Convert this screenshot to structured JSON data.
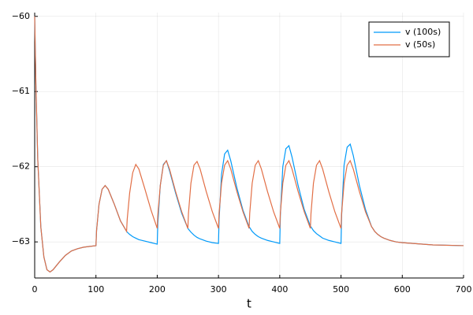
{
  "chart_data": {
    "type": "line",
    "xlabel": "t",
    "x": [
      0,
      2,
      5,
      10,
      15,
      20,
      25,
      30,
      40,
      50,
      60,
      70,
      80,
      90,
      100,
      101,
      105,
      110,
      115,
      120,
      130,
      140,
      150,
      151,
      155,
      160,
      165,
      170,
      180,
      190,
      200,
      201,
      205,
      210,
      215,
      220,
      230,
      240,
      250,
      251,
      255,
      260,
      265,
      270,
      280,
      290,
      300,
      301,
      305,
      310,
      315,
      320,
      330,
      340,
      350,
      351,
      355,
      360,
      365,
      370,
      380,
      390,
      400,
      401,
      405,
      410,
      415,
      420,
      430,
      440,
      450,
      451,
      455,
      460,
      465,
      470,
      480,
      490,
      500,
      501,
      505,
      510,
      515,
      520,
      530,
      540,
      550,
      551,
      555,
      560,
      565,
      570,
      580,
      590,
      600,
      650,
      700
    ],
    "series": [
      {
        "name": "v (100s)",
        "color": "#009af9",
        "values": [
          -60,
          -60.9,
          -61.9,
          -62.8,
          -63.2,
          -63.37,
          -63.4,
          -63.37,
          -63.27,
          -63.18,
          -63.12,
          -63.09,
          -63.07,
          -63.06,
          -63.05,
          -62.85,
          -62.5,
          -62.3,
          -62.25,
          -62.3,
          -62.5,
          -62.72,
          -62.86,
          -62.87,
          -62.9,
          -62.93,
          -62.95,
          -62.97,
          -62.99,
          -63.01,
          -63.03,
          -62.75,
          -62.25,
          -61.97,
          -61.92,
          -62.05,
          -62.35,
          -62.62,
          -62.82,
          -62.83,
          -62.87,
          -62.91,
          -62.94,
          -62.96,
          -62.99,
          -63.01,
          -63.02,
          -62.7,
          -62.1,
          -61.83,
          -61.78,
          -61.92,
          -62.28,
          -62.58,
          -62.8,
          -62.81,
          -62.86,
          -62.9,
          -62.93,
          -62.95,
          -62.98,
          -63.0,
          -63.02,
          -62.65,
          -62.0,
          -61.76,
          -61.72,
          -61.87,
          -62.25,
          -62.57,
          -62.79,
          -62.8,
          -62.85,
          -62.89,
          -62.92,
          -62.95,
          -62.98,
          -63.0,
          -63.02,
          -62.65,
          -61.98,
          -61.74,
          -61.7,
          -61.85,
          -62.25,
          -62.57,
          -62.8,
          -62.81,
          -62.86,
          -62.9,
          -62.93,
          -62.95,
          -62.98,
          -63.0,
          -63.01,
          -63.04,
          -63.05
        ]
      },
      {
        "name": "v (50s)",
        "color": "#e26f46",
        "values": [
          -60,
          -60.9,
          -61.9,
          -62.8,
          -63.2,
          -63.37,
          -63.4,
          -63.37,
          -63.27,
          -63.18,
          -63.12,
          -63.09,
          -63.07,
          -63.06,
          -63.05,
          -62.85,
          -62.5,
          -62.3,
          -62.25,
          -62.3,
          -62.5,
          -62.72,
          -62.86,
          -62.7,
          -62.35,
          -62.08,
          -61.97,
          -62.03,
          -62.3,
          -62.58,
          -62.82,
          -62.65,
          -62.25,
          -61.98,
          -61.92,
          -62.03,
          -62.33,
          -62.6,
          -62.82,
          -62.62,
          -62.22,
          -61.98,
          -61.93,
          -62.03,
          -62.33,
          -62.6,
          -62.82,
          -62.62,
          -62.22,
          -61.98,
          -61.92,
          -62.03,
          -62.33,
          -62.6,
          -62.82,
          -62.62,
          -62.22,
          -61.98,
          -61.92,
          -62.03,
          -62.33,
          -62.6,
          -62.82,
          -62.62,
          -62.22,
          -61.98,
          -61.92,
          -62.03,
          -62.33,
          -62.6,
          -62.82,
          -62.62,
          -62.22,
          -61.98,
          -61.92,
          -62.03,
          -62.33,
          -62.6,
          -62.82,
          -62.62,
          -62.22,
          -61.98,
          -61.92,
          -62.03,
          -62.33,
          -62.6,
          -62.8,
          -62.81,
          -62.86,
          -62.9,
          -62.93,
          -62.95,
          -62.98,
          -63.0,
          -63.01,
          -63.04,
          -63.05
        ]
      }
    ],
    "xlim": [
      0,
      700
    ],
    "xticks": [
      0,
      100,
      200,
      300,
      400,
      500,
      600,
      700
    ],
    "ylim": [
      -63.48,
      -59.95
    ],
    "yticks": [
      {
        "value": -63,
        "label": "−63"
      },
      {
        "value": -62,
        "label": "−62"
      },
      {
        "value": -61,
        "label": "−61"
      },
      {
        "value": -60,
        "label": "−60"
      }
    ],
    "grid": true,
    "legend": "top right"
  }
}
